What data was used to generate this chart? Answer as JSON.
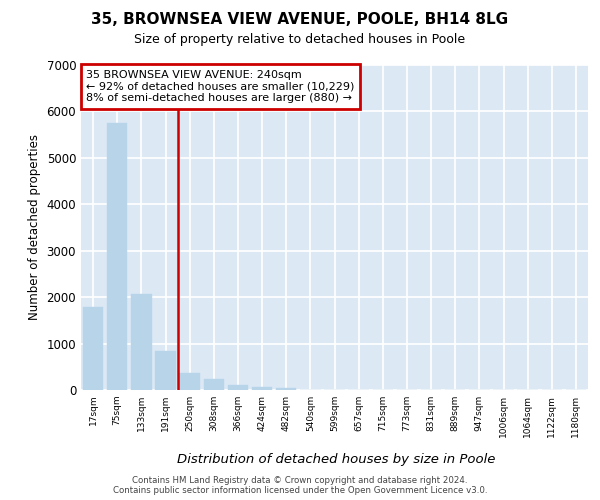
{
  "title": "35, BROWNSEA VIEW AVENUE, POOLE, BH14 8LG",
  "subtitle": "Size of property relative to detached houses in Poole",
  "xlabel": "Distribution of detached houses by size in Poole",
  "ylabel": "Number of detached properties",
  "bar_color": "#b8d4e8",
  "bar_edge_color": "#b8d4e8",
  "background_color": "#dce9f5",
  "grid_color": "#ffffff",
  "annotation_line_color": "#cc0000",
  "annotation_box_color": "#cc0000",
  "annotation_text_line1": "35 BROWNSEA VIEW AVENUE: 240sqm",
  "annotation_text_line2": "← 92% of detached houses are smaller (10,229)",
  "annotation_text_line3": "8% of semi-detached houses are larger (880) →",
  "footer_line1": "Contains HM Land Registry data © Crown copyright and database right 2024.",
  "footer_line2": "Contains public sector information licensed under the Open Government Licence v3.0.",
  "categories": [
    "17sqm",
    "75sqm",
    "133sqm",
    "191sqm",
    "250sqm",
    "308sqm",
    "366sqm",
    "424sqm",
    "482sqm",
    "540sqm",
    "599sqm",
    "657sqm",
    "715sqm",
    "773sqm",
    "831sqm",
    "889sqm",
    "947sqm",
    "1006sqm",
    "1064sqm",
    "1122sqm",
    "1180sqm"
  ],
  "values": [
    1790,
    5750,
    2060,
    840,
    370,
    230,
    110,
    60,
    40,
    0,
    0,
    0,
    0,
    0,
    0,
    0,
    0,
    0,
    0,
    0,
    0
  ],
  "property_bin_index": 4,
  "ylim": [
    0,
    7000
  ],
  "yticks": [
    0,
    1000,
    2000,
    3000,
    4000,
    5000,
    6000,
    7000
  ]
}
